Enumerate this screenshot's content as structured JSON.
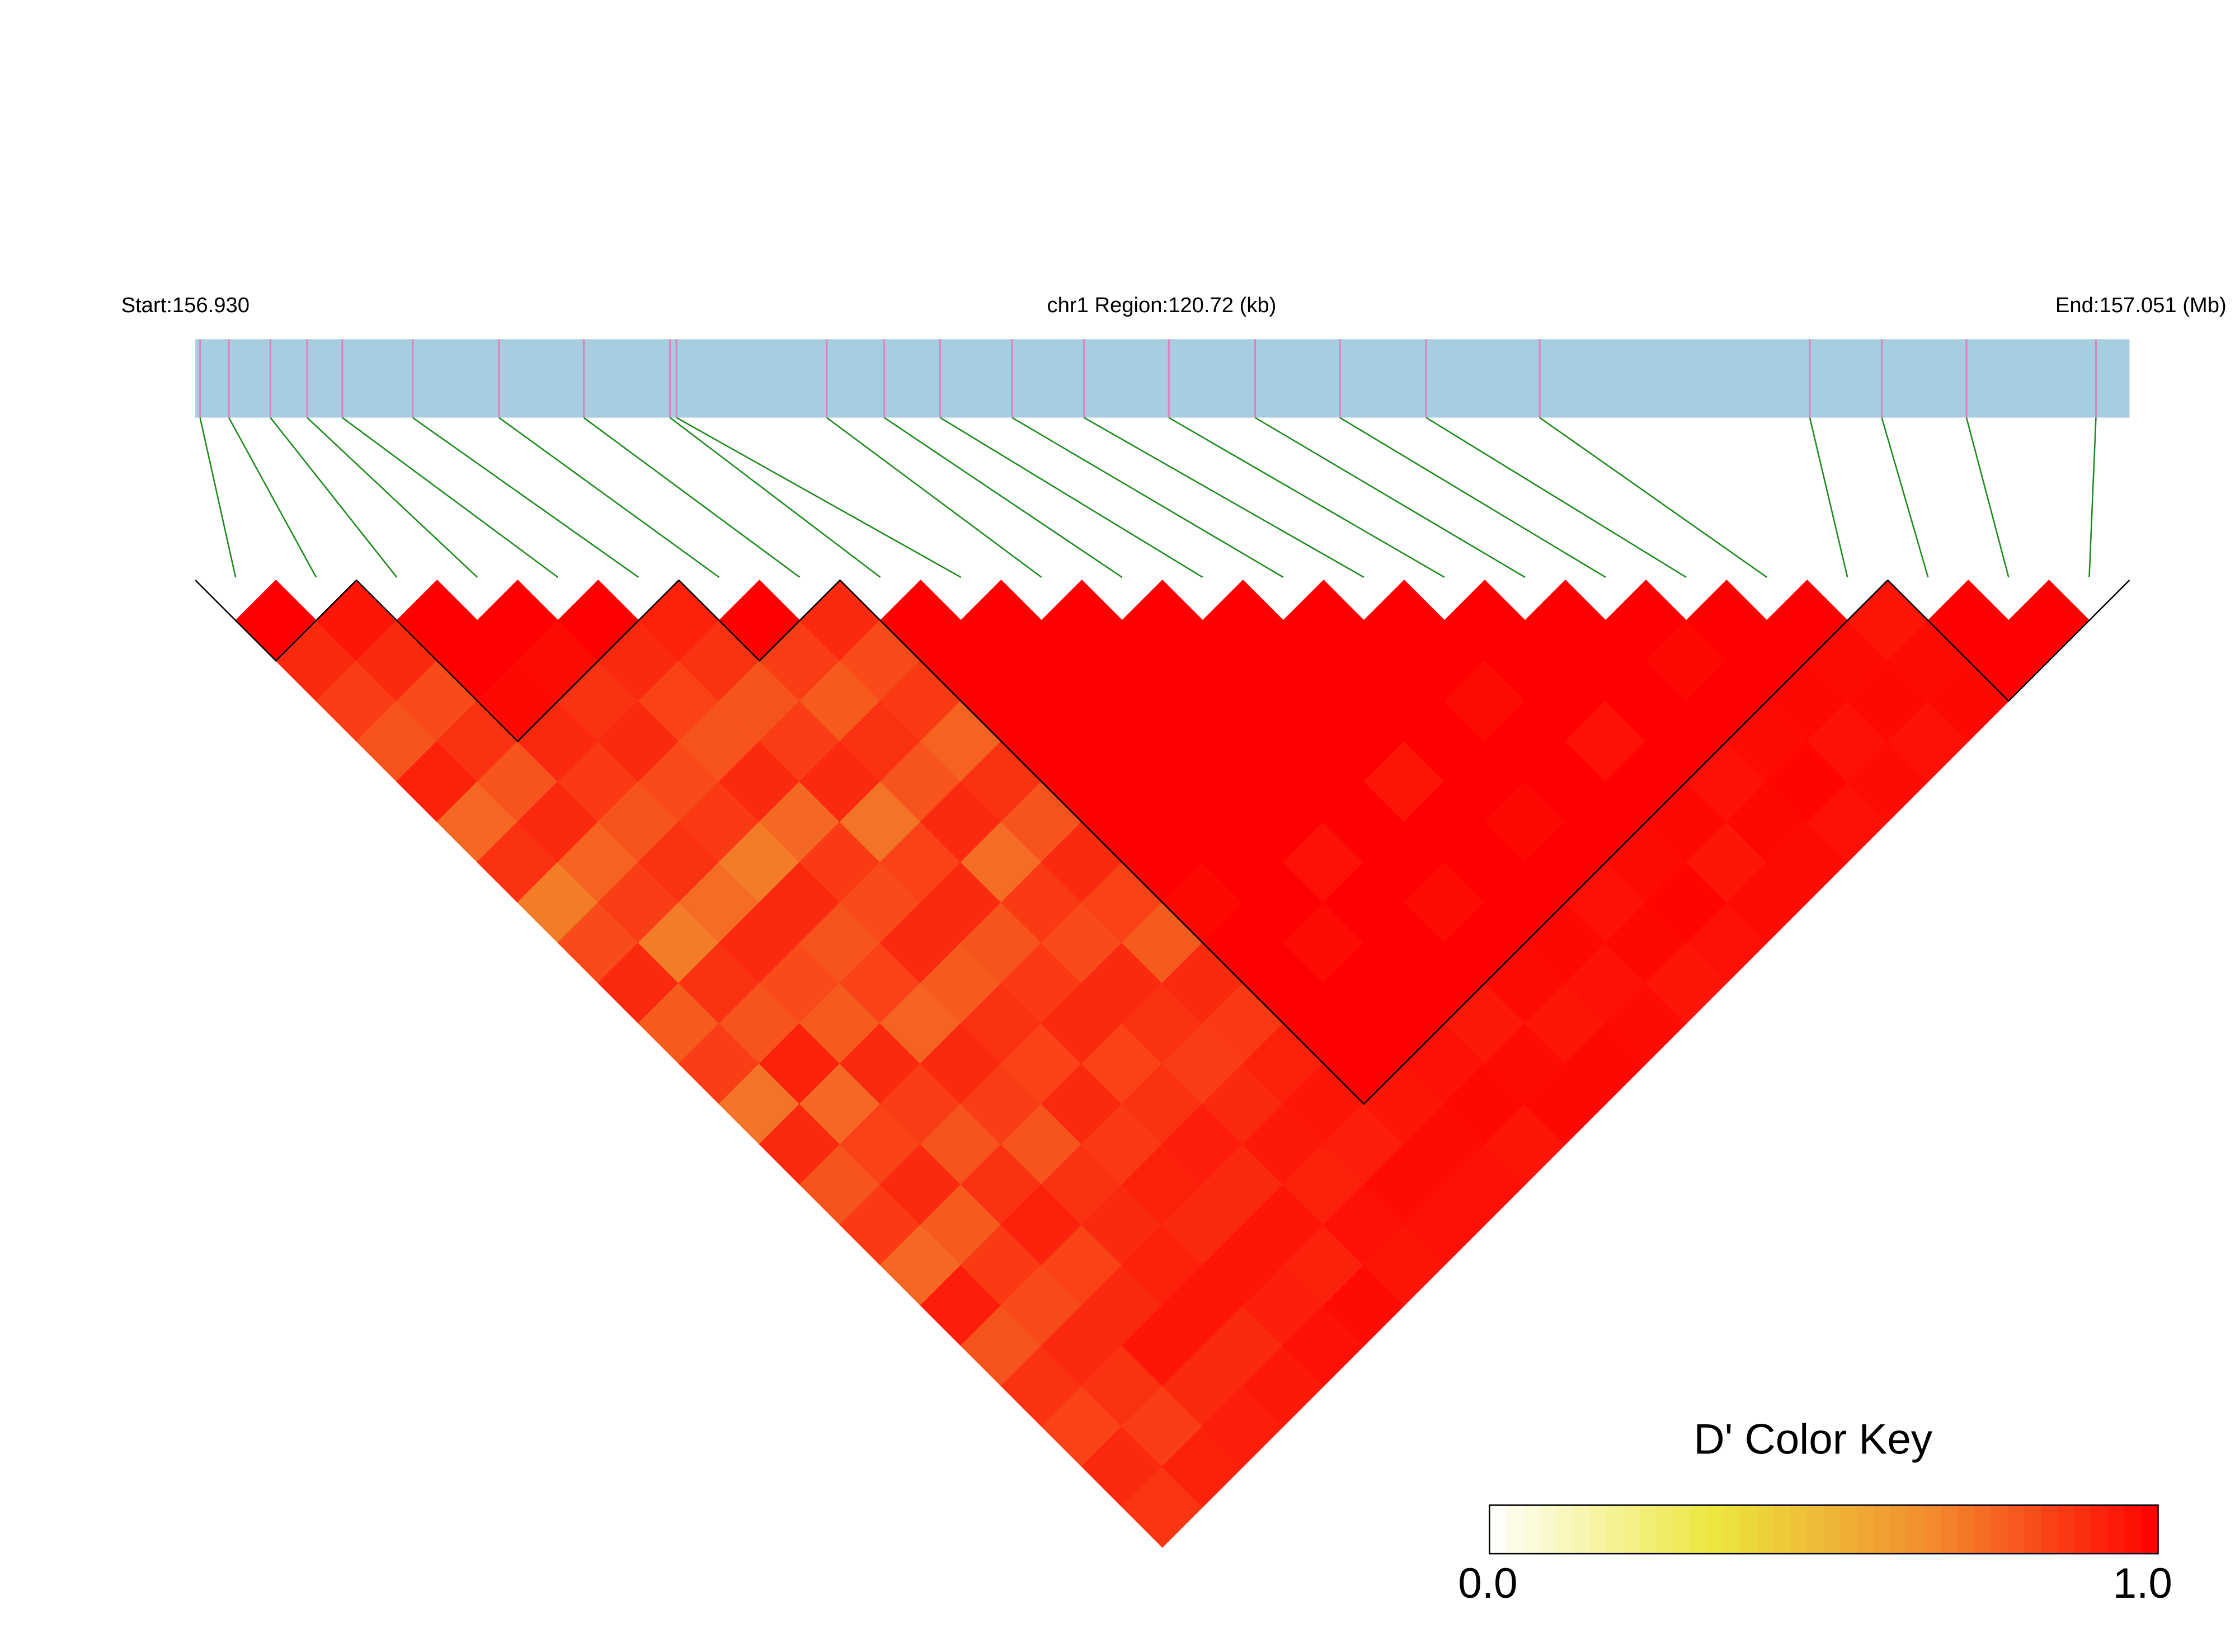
{
  "chart_data": {
    "type": "ld_heatmap",
    "start_label": "Start:156.930",
    "title": "chr1 Region:120.72 (kb)",
    "end_label": "End:157.051 (Mb)",
    "xlim": [
      156.93,
      157.051
    ],
    "positions": [
      156.9303,
      156.9321,
      156.9347,
      156.937,
      156.9392,
      156.9436,
      156.949,
      156.9543,
      156.9597,
      156.9601,
      156.9695,
      156.9731,
      156.9766,
      156.9811,
      156.9856,
      156.9909,
      156.9963,
      157.0016,
      157.007,
      157.0141,
      157.031,
      157.0355,
      157.0408,
      157.0489
    ],
    "dprime": [
      [
        1,
        0.9,
        0.85,
        0.8,
        0.92,
        0.75,
        0.88,
        0.7,
        0.82,
        0.9,
        0.78,
        0.85,
        0.72,
        0.9,
        0.8,
        0.86,
        0.75,
        0.93,
        0.8,
        0.88,
        0.84,
        0.9,
        0.87
      ],
      [
        0.95,
        0.9,
        0.82,
        0.88,
        0.8,
        0.9,
        0.76,
        0.85,
        0.7,
        0.88,
        0.8,
        0.92,
        0.75,
        0.84,
        0.9,
        0.78,
        0.86,
        0.82,
        0.9,
        0.88,
        0.85,
        0.92
      ],
      [
        1,
        1,
        0.98,
        0.9,
        0.86,
        0.8,
        0.88,
        0.74,
        0.9,
        0.82,
        0.78,
        0.9,
        0.85,
        0.8,
        0.88,
        0.92,
        0.84,
        0.9,
        0.95,
        0.9,
        0.93
      ],
      [
        1,
        0.97,
        0.88,
        0.9,
        0.82,
        0.86,
        0.7,
        0.9,
        0.8,
        0.84,
        0.76,
        0.9,
        0.85,
        0.8,
        0.88,
        0.9,
        0.92,
        0.95,
        0.9,
        0.94
      ],
      [
        1,
        0.9,
        0.84,
        0.8,
        0.9,
        0.75,
        0.86,
        0.82,
        0.9,
        0.78,
        0.88,
        0.84,
        0.9,
        0.86,
        0.92,
        0.9,
        0.95,
        0.93,
        0.96
      ],
      [
        0.92,
        0.88,
        0.8,
        0.85,
        0.9,
        0.72,
        0.84,
        0.9,
        0.8,
        0.86,
        0.9,
        0.84,
        0.88,
        0.93,
        0.9,
        0.95,
        0.92,
        0.97
      ],
      [
        1,
        0.85,
        0.78,
        0.88,
        0.8,
        0.9,
        0.74,
        0.86,
        0.82,
        0.9,
        0.88,
        0.85,
        0.9,
        0.94,
        0.92,
        0.96,
        0.95
      ],
      [
        0.9,
        0.82,
        0.86,
        0.76,
        0.88,
        0.8,
        0.9,
        0.84,
        0.78,
        0.9,
        0.86,
        0.92,
        0.95,
        0.93,
        0.97,
        0.96
      ],
      [
        1,
        1,
        1,
        1,
        1,
        1,
        1,
        0.98,
        1,
        1,
        1,
        1,
        0.95,
        0.97,
        0.96
      ],
      [
        1,
        1,
        1,
        1,
        1,
        1,
        1,
        1,
        0.97,
        1,
        1,
        0.96,
        0.98,
        0.95
      ],
      [
        1,
        1,
        1,
        1,
        1,
        1,
        0.96,
        1,
        1,
        1,
        0.94,
        0.97,
        0.98
      ],
      [
        1,
        1,
        1,
        1,
        1,
        1,
        1,
        0.97,
        1,
        0.97,
        0.95,
        0.98
      ],
      [
        1,
        1,
        1,
        1,
        0.95,
        1,
        1,
        1,
        0.98,
        0.96,
        0.97
      ],
      [
        1,
        1,
        1,
        1,
        1,
        0.98,
        1,
        0.96,
        0.98,
        0.95
      ],
      [
        1,
        1,
        0.97,
        1,
        1,
        1,
        0.97,
        0.99,
        0.96
      ],
      [
        1,
        1,
        1,
        0.96,
        1,
        0.98,
        0.95,
        0.97
      ],
      [
        1,
        1,
        1,
        1,
        0.96,
        0.98,
        0.97
      ],
      [
        1,
        0.98,
        1,
        0.97,
        0.99,
        0.96
      ],
      [
        1,
        1,
        0.98,
        0.96,
        0.97
      ],
      [
        1,
        0.97,
        0.98,
        0.96
      ],
      [
        0.95,
        0.97,
        0.98
      ],
      [
        1,
        1
      ],
      [
        1
      ]
    ],
    "blocks": [
      [
        0,
        1
      ],
      [
        2,
        5
      ],
      [
        6,
        7
      ],
      [
        8,
        20
      ],
      [
        21,
        23
      ]
    ],
    "key_title": "D' Color Key",
    "key_colors": [
      "#ffffff",
      "#ece73f",
      "#f28a2e",
      "#ff0000"
    ],
    "key_lim": [
      0,
      1
    ],
    "key_ticks": [
      {
        "value": 0,
        "label": "0.0"
      },
      {
        "value": 1,
        "label": "1.0"
      }
    ],
    "bar_color": "#a6cde0",
    "snp_color": "#e080c0",
    "link_color": "#1a8a1a"
  }
}
